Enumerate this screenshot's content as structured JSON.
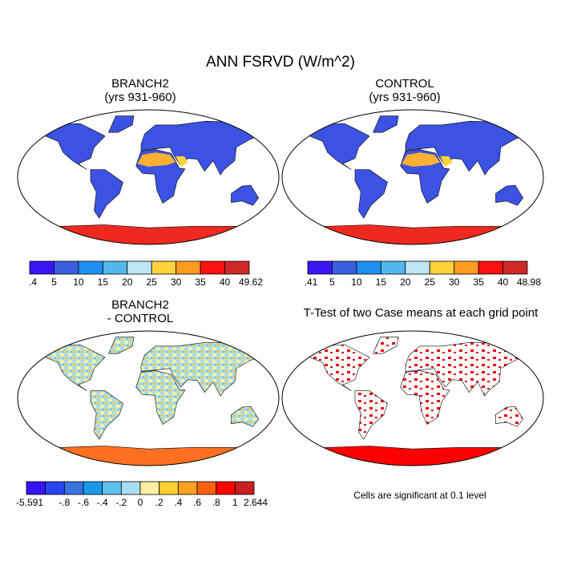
{
  "title": "ANN FSRVD (W/m^2)",
  "panels": [
    {
      "title": [
        "BRANCH2",
        "(yrs 931-960)"
      ]
    },
    {
      "title": [
        "CONTROL",
        "(yrs 931-960)"
      ]
    },
    {
      "title": [
        "BRANCH2",
        "- CONTROL"
      ]
    },
    {
      "title": [
        "T-Test of two Case means at each grid point"
      ]
    }
  ],
  "colorbars": [
    {
      "colors": [
        "#3c16f5",
        "#3b5fe0",
        "#1e90f0",
        "#50b8ec",
        "#bfe6f5",
        "#ffd23c",
        "#ff9a1e",
        "#ff1010",
        "#d02828"
      ],
      "labels": [
        ".4",
        "5",
        "10",
        "15",
        "20",
        "25",
        "30",
        "35",
        "40",
        "49.62"
      ]
    },
    {
      "colors": [
        "#3c16f5",
        "#3b5fe0",
        "#1e90f0",
        "#50b8ec",
        "#bfe6f5",
        "#ffd23c",
        "#ff9a1e",
        "#ff1010",
        "#d02828"
      ],
      "labels": [
        ".41",
        "5",
        "10",
        "15",
        "20",
        "25",
        "30",
        "35",
        "40",
        "48.98"
      ]
    },
    {
      "colors": [
        "#3a14f0",
        "#2a44f0",
        "#3a72e0",
        "#1a9ae8",
        "#60c0ec",
        "#a8dcf0",
        "#fff0a0",
        "#ffd030",
        "#ffa020",
        "#ff6010",
        "#ff0000",
        "#c82020"
      ],
      "labels": [
        "-5.591",
        "-.8",
        "-.6",
        "-.4",
        "-.2",
        "0",
        ".2",
        ".4",
        ".6",
        ".8",
        "1",
        "2.644"
      ]
    }
  ],
  "footnote": "Cells are significant at 0.1 level"
}
